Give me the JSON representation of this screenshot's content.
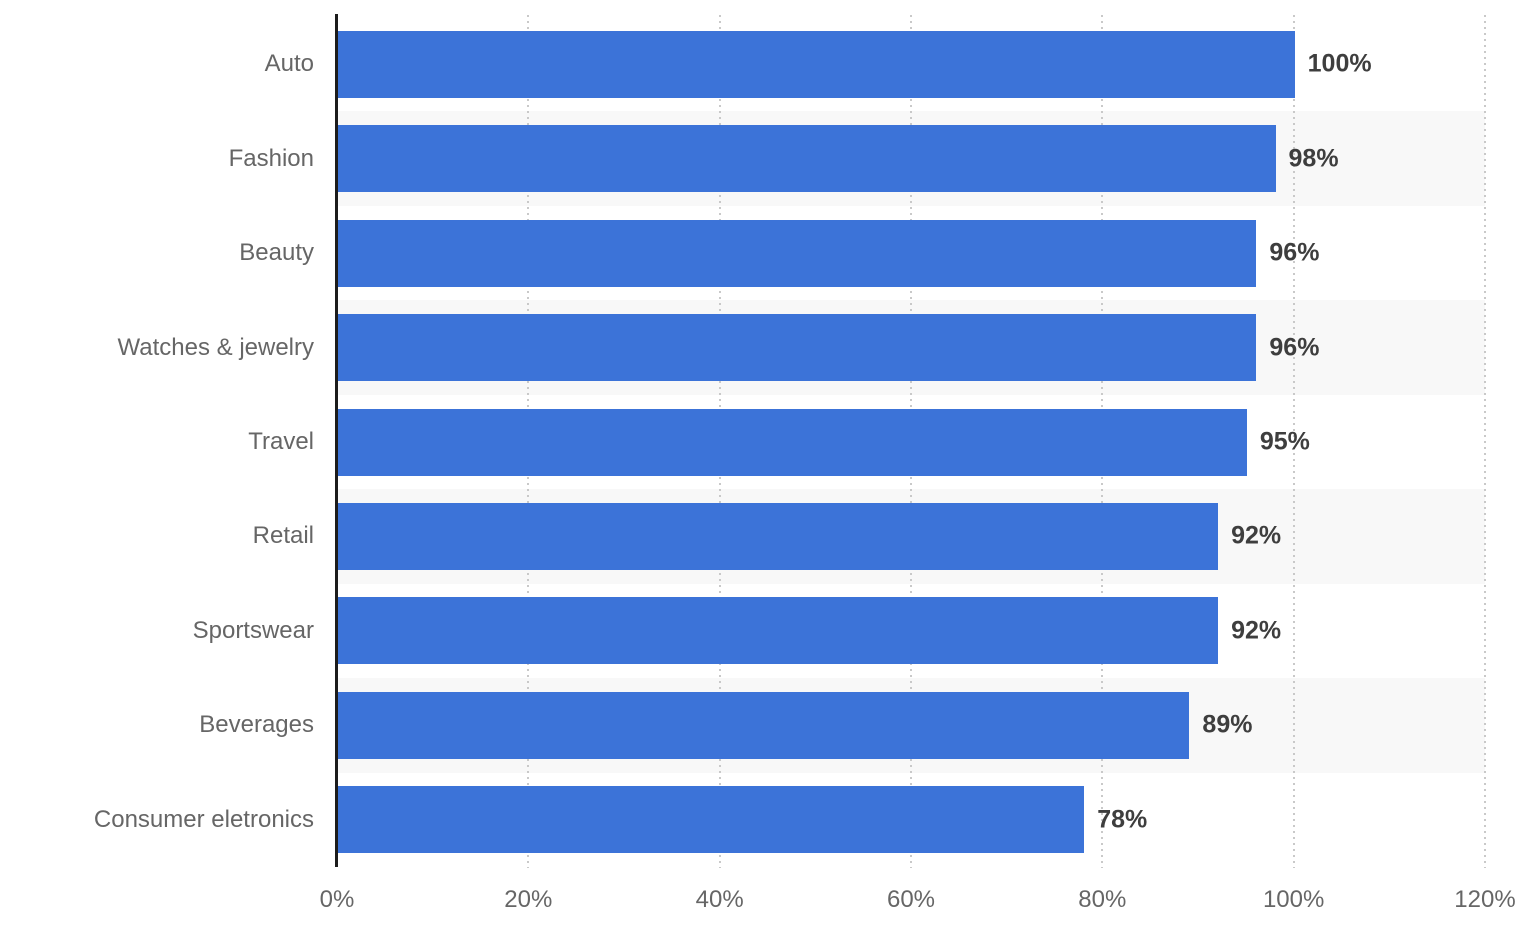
{
  "chart_data": {
    "type": "bar",
    "orientation": "horizontal",
    "title": "",
    "xlabel": "",
    "ylabel": "",
    "categories": [
      "Auto",
      "Fashion",
      "Beauty",
      "Watches & jewelry",
      "Travel",
      "Retail",
      "Sportswear",
      "Beverages",
      "Consumer eletronics"
    ],
    "values": [
      100,
      98,
      96,
      96,
      95,
      92,
      92,
      89,
      78
    ],
    "value_labels": [
      "100%",
      "98%",
      "96%",
      "96%",
      "95%",
      "92%",
      "92%",
      "89%",
      "78%"
    ],
    "x_ticks": [
      {
        "value": 0,
        "label": "0%"
      },
      {
        "value": 20,
        "label": "20%"
      },
      {
        "value": 40,
        "label": "40%"
      },
      {
        "value": 60,
        "label": "60%"
      },
      {
        "value": 80,
        "label": "80%"
      },
      {
        "value": 100,
        "label": "100%"
      },
      {
        "value": 120,
        "label": "120%"
      }
    ],
    "xlim": [
      0,
      120
    ],
    "grid": "vertical-dotted",
    "legend": "none",
    "row_stripes": "alternating, even rows shaded",
    "colors": {
      "bar": "#3c73d8",
      "value_label": "#3e3e3e",
      "category_label": "#666666",
      "tick_label": "#666666",
      "stripe": "#f8f8f8",
      "gridline": "#c9c9c9",
      "axis": "#1c1c1c",
      "background": "#ffffff"
    }
  }
}
